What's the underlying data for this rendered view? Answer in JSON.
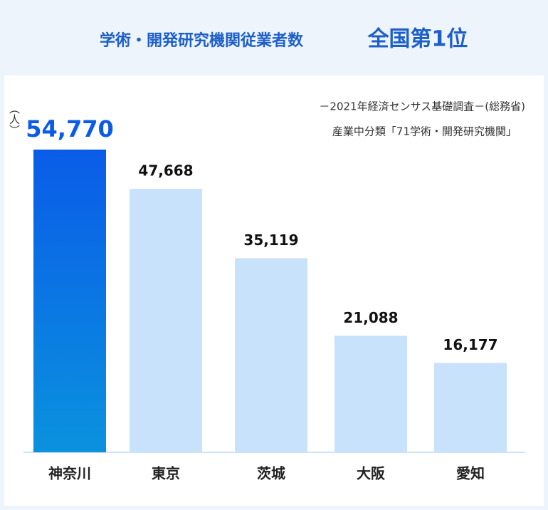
{
  "chart_data": {
    "type": "bar",
    "title": "学術・開発研究機関従業者数",
    "subtitle": "全国第1位",
    "unit_label": "（人）",
    "source_lines": [
      "－2021年経済センサス基礎調査－(総務省)",
      "産業中分類「71学術・開発研究機関」"
    ],
    "categories": [
      "神奈川",
      "東京",
      "茨城",
      "大阪",
      "愛知"
    ],
    "values": [
      54770,
      47668,
      35119,
      21088,
      16177
    ],
    "value_labels": [
      "54,770",
      "47,668",
      "35,119",
      "21,088",
      "16,177"
    ],
    "colors": [
      "#0a5ce8",
      "#c8e2fb",
      "#c8e2fb",
      "#c8e2fb",
      "#c8e2fb"
    ]
  }
}
